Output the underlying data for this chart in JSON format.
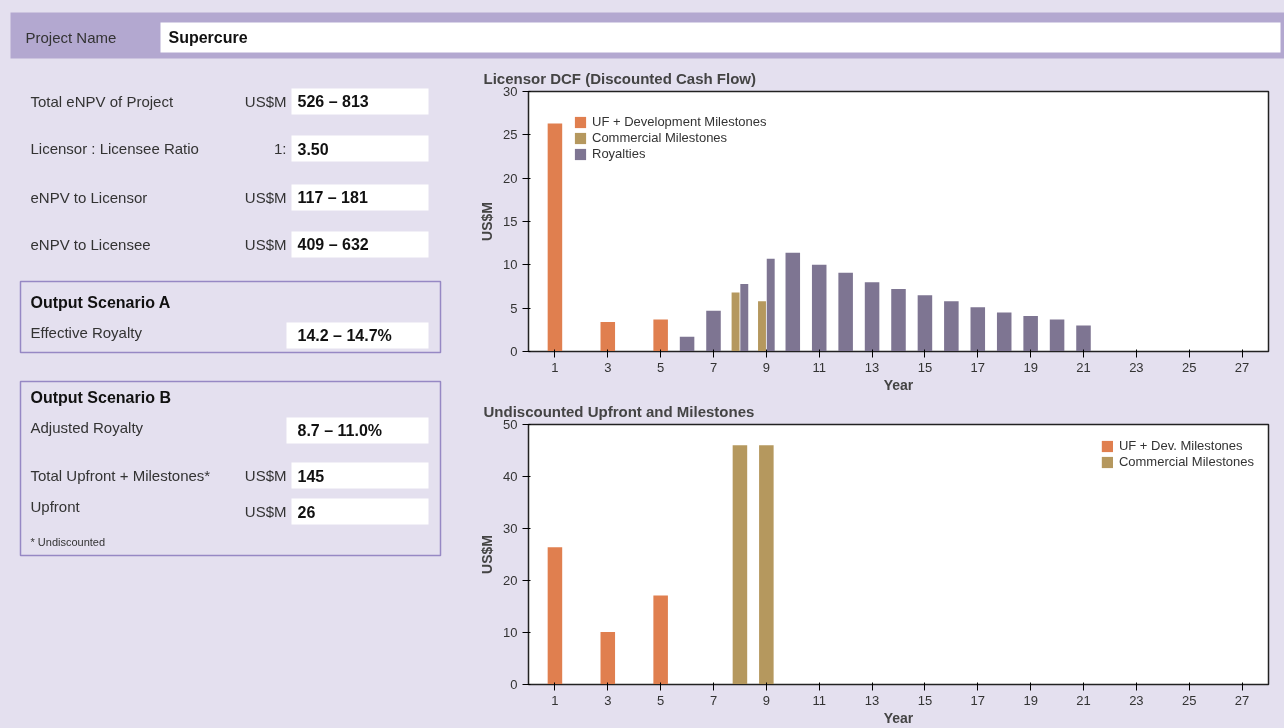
{
  "chart_data": [
    {
      "type": "other",
      "annotations": [
        "Project Name",
        "Supercure",
        "Total eNPV of Project",
        "US$M",
        "526 – 813",
        "Licensor : Licensee Ratio",
        "1:",
        "3.50",
        "eNPV to Licensor",
        "US$M",
        "117 – 181",
        "eNPV to Licensee",
        "US$M",
        "409 – 632",
        "Output Scenario A",
        "Effective Royalty",
        "14.2 – 14.7%",
        "Output Scenario B",
        "Adjusted Royalty",
        "8.7 – 11.0%",
        "Total Upfront + Milestones*",
        "US$M",
        "145",
        "Upfront",
        "US$M",
        "26",
        "* Undiscounted"
      ]
    },
    {
      "type": "bar",
      "title": "Licensor DCF (Discounted Cash Flow)",
      "xlabel": "Year",
      "ylabel": "US$M",
      "xlim": [
        0,
        28
      ],
      "xticks": [
        1,
        3,
        5,
        7,
        9,
        11,
        13,
        15,
        17,
        19,
        21,
        23,
        25,
        27
      ],
      "ylim": [
        0,
        30
      ],
      "yticks": [
        0,
        5,
        10,
        15,
        20,
        25,
        30
      ],
      "grid": false,
      "legend": "top left",
      "series": [
        {
          "name": "UF + Development Milestones",
          "color": "#e07f4f",
          "x": [
            1,
            3,
            5
          ],
          "values": [
            26.3,
            3.4,
            3.7
          ]
        },
        {
          "name": "Commercial Milestones",
          "color": "#b5985e",
          "x": [
            8,
            9
          ],
          "values": [
            6.8,
            5.8
          ]
        },
        {
          "name": "Royalties",
          "color": "#7e7592",
          "x": [
            6,
            7,
            8,
            9,
            10,
            11,
            12,
            13,
            14,
            15,
            16,
            17,
            18,
            19,
            20,
            21
          ],
          "values": [
            1.7,
            4.7,
            7.8,
            10.7,
            11.4,
            10.0,
            9.1,
            8.0,
            7.2,
            6.5,
            5.8,
            5.1,
            4.5,
            4.1,
            3.7,
            3.0
          ]
        }
      ]
    },
    {
      "type": "bar",
      "title": "Undiscounted Upfront and Milestones",
      "xlabel": "Year",
      "ylabel": "US$M",
      "xlim": [
        0,
        28
      ],
      "xticks": [
        1,
        3,
        5,
        7,
        9,
        11,
        13,
        15,
        17,
        19,
        21,
        23,
        25,
        27
      ],
      "ylim": [
        0,
        50
      ],
      "yticks": [
        0,
        10,
        20,
        30,
        40,
        50
      ],
      "grid": false,
      "legend": "top right",
      "series": [
        {
          "name": "UF + Dev. Milestones",
          "color": "#e07f4f",
          "x": [
            1,
            3,
            5
          ],
          "values": [
            26.4,
            10.1,
            17.1
          ]
        },
        {
          "name": "Commercial Milestones",
          "color": "#b5985e",
          "x": [
            8,
            9
          ],
          "values": [
            46.0,
            46.0
          ]
        }
      ]
    }
  ]
}
